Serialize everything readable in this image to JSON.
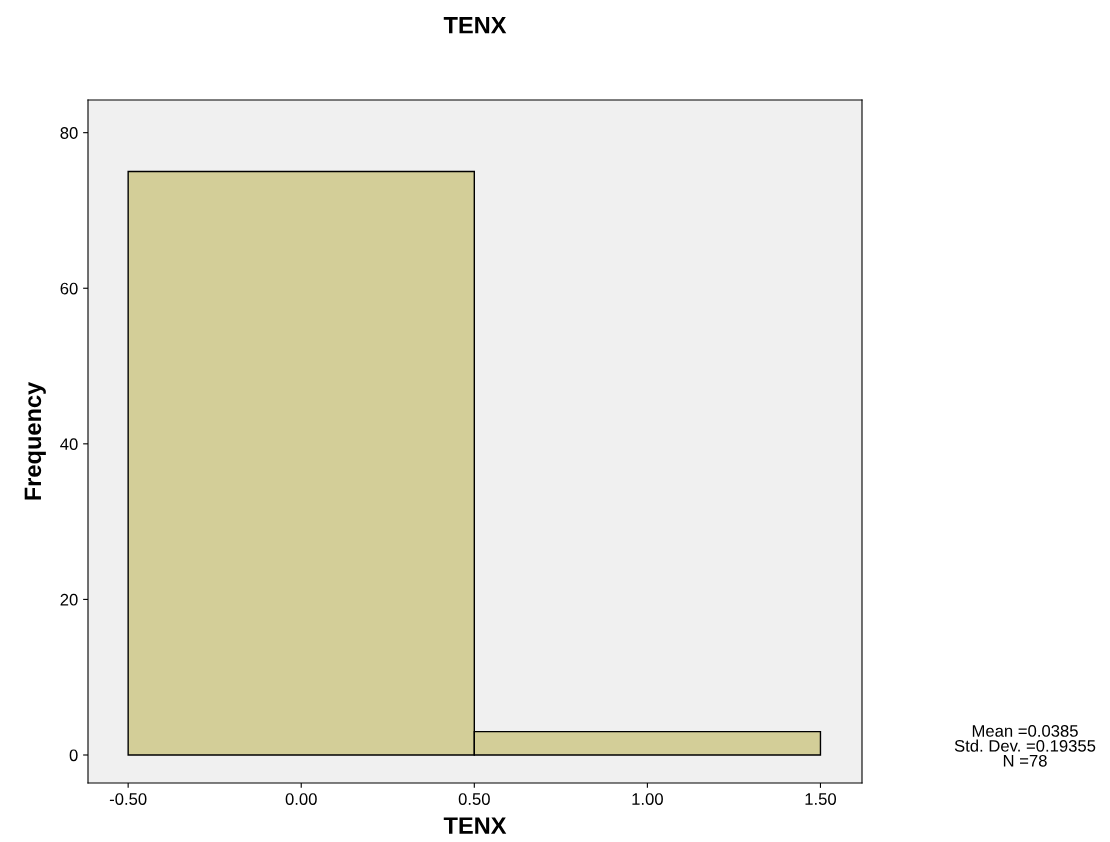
{
  "chart_data": {
    "type": "histogram",
    "title": "TENX",
    "xlabel": "TENX",
    "ylabel": "Frequency",
    "bins": [
      -0.5,
      0.5,
      1.5
    ],
    "values": [
      75,
      3
    ],
    "color": "#d3ce98",
    "xlim": [
      -0.616,
      1.62
    ],
    "ylim": [
      -3.6,
      84.2
    ],
    "xticks": [
      {
        "value": -0.5,
        "label": "-0.50"
      },
      {
        "value": 0,
        "label": "0.00"
      },
      {
        "value": 0.5,
        "label": "0.50"
      },
      {
        "value": 1,
        "label": "1.00"
      },
      {
        "value": 1.5,
        "label": "1.50"
      }
    ],
    "yticks": [
      0,
      20,
      40,
      60,
      80
    ],
    "grid": false,
    "annotations": [
      "Mean =0.0385\nStd. Dev. =0.19355\nN =78"
    ]
  }
}
